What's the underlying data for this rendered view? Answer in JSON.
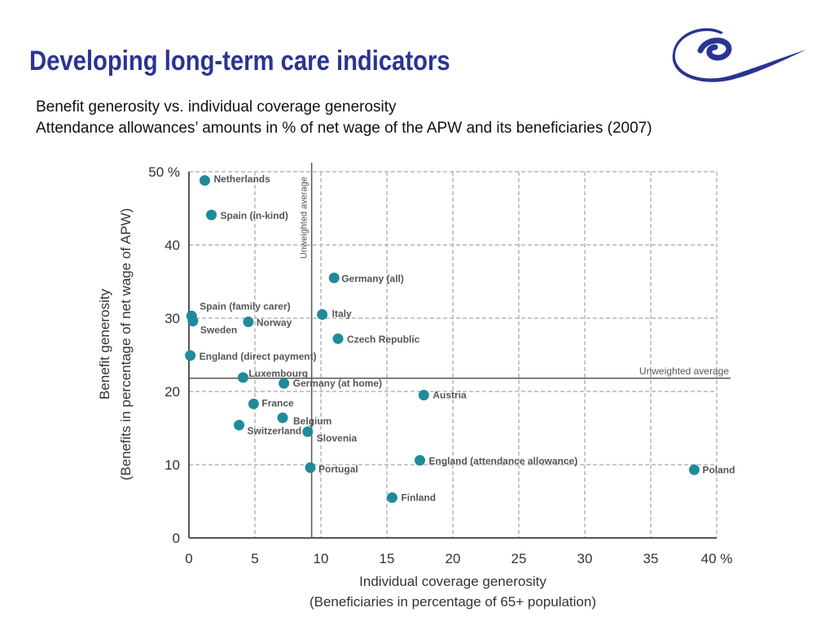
{
  "page": {
    "title": "Developing long-term care indicators",
    "subtitle_line1": "Benefit generosity vs. individual coverage generosity",
    "subtitle_line2": "Attendance allowances’ amounts in % of net wage of the APW and its beneficiaries (2007)"
  },
  "colors": {
    "title": "#2a3492",
    "point": "#1f8b99",
    "grid": "#b5b5b5",
    "axis": "#555555",
    "text": "#555555"
  },
  "chart_data": {
    "type": "scatter",
    "xlabel": "Individual coverage generosity",
    "xlabel_line2": "(Beneficiaries in percentage of 65+ population)",
    "ylabel": "Benefit generosity",
    "ylabel_line2": "(Benefits in percentage of net wage of APW)",
    "xlim": [
      0,
      40
    ],
    "ylim": [
      0,
      50
    ],
    "x_ticks": [
      {
        "value": 0,
        "label": "0"
      },
      {
        "value": 5,
        "label": "5"
      },
      {
        "value": 10,
        "label": "10"
      },
      {
        "value": 15,
        "label": "15"
      },
      {
        "value": 20,
        "label": "20"
      },
      {
        "value": 25,
        "label": "25"
      },
      {
        "value": 30,
        "label": "30"
      },
      {
        "value": 35,
        "label": "35"
      },
      {
        "value": 40,
        "label": "40 %"
      }
    ],
    "y_ticks": [
      {
        "value": 0,
        "label": "0"
      },
      {
        "value": 10,
        "label": "10"
      },
      {
        "value": 20,
        "label": "20"
      },
      {
        "value": 30,
        "label": "30"
      },
      {
        "value": 40,
        "label": "40"
      },
      {
        "value": 50,
        "label": "50 %"
      }
    ],
    "grid": true,
    "points": [
      {
        "label": "Netherlands",
        "x": 1.2,
        "y": 48.8
      },
      {
        "label": "Spain (in-kind)",
        "x": 1.7,
        "y": 44.1
      },
      {
        "label": "Germany (all)",
        "x": 11.0,
        "y": 35.5
      },
      {
        "label": "Spain (family carer)",
        "x": 0.2,
        "y": 30.3
      },
      {
        "label": "Italy",
        "x": 10.1,
        "y": 30.5
      },
      {
        "label": "Sweden",
        "x": 0.3,
        "y": 29.6
      },
      {
        "label": "Norway",
        "x": 4.5,
        "y": 29.5
      },
      {
        "label": "Czech Republic",
        "x": 11.3,
        "y": 27.2
      },
      {
        "label": "England (direct payment)",
        "x": 0.1,
        "y": 24.9
      },
      {
        "label": "Luxembourg",
        "x": 4.1,
        "y": 21.9
      },
      {
        "label": "Germany (at home)",
        "x": 7.2,
        "y": 21.1
      },
      {
        "label": "Austria",
        "x": 17.8,
        "y": 19.5
      },
      {
        "label": "France",
        "x": 4.9,
        "y": 18.3
      },
      {
        "label": "Belgium",
        "x": 7.1,
        "y": 16.4
      },
      {
        "label": "Switzerland",
        "x": 3.8,
        "y": 15.4
      },
      {
        "label": "Slovenia",
        "x": 9.0,
        "y": 14.5
      },
      {
        "label": "England (attendance allowance)",
        "x": 17.5,
        "y": 10.6
      },
      {
        "label": "Portugal",
        "x": 9.2,
        "y": 9.6
      },
      {
        "label": "Poland",
        "x": 38.3,
        "y": 9.3
      },
      {
        "label": "Finland",
        "x": 15.4,
        "y": 5.5
      }
    ],
    "reference_lines": [
      {
        "orientation": "vertical",
        "value": 9.3,
        "label": "Unweighted average"
      },
      {
        "orientation": "horizontal",
        "value": 21.8,
        "label": "Unweighted average"
      }
    ]
  }
}
